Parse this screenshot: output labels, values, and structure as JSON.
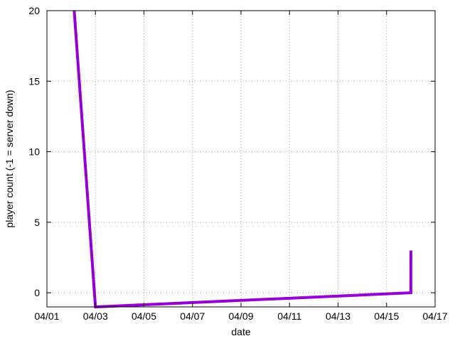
{
  "chart_data": {
    "type": "line",
    "title": "",
    "xlabel": "date",
    "ylabel": "player count (-1 = server down)",
    "x_ticks": [
      "04/01",
      "04/03",
      "04/05",
      "04/07",
      "04/09",
      "04/11",
      "04/13",
      "04/15",
      "04/17"
    ],
    "y_ticks": [
      "0",
      "5",
      "10",
      "15",
      "20"
    ],
    "xlim": [
      "04/01",
      "04/17"
    ],
    "ylim": [
      -1,
      20
    ],
    "grid": true,
    "legend": "none",
    "series": [
      {
        "color": "#9400d3",
        "x": [
          "04/02 03:00",
          "04/03 00:00",
          "04/16 00:00",
          "04/16 00:01"
        ],
        "y": [
          20,
          -1,
          0,
          3
        ]
      }
    ]
  }
}
